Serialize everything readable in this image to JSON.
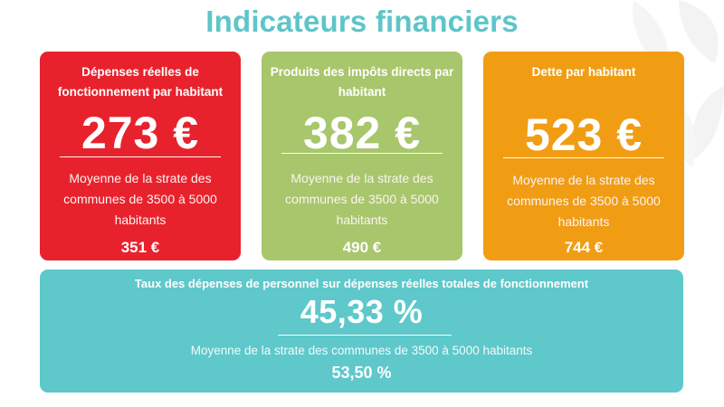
{
  "page": {
    "title": "Indicateurs financiers"
  },
  "colors": {
    "title": "#5ec5c9",
    "card_1": "#e8222d",
    "card_2": "#a8c66b",
    "card_3": "#f09d14",
    "wide_card": "#5ec8cb"
  },
  "cards": [
    {
      "heading": "Dépenses réelles de fonctionnement par habitant",
      "value": "273 €",
      "note": "Moyenne de la strate des communes de 3500 à 5000 habitants",
      "average": "351 €"
    },
    {
      "heading": "Produits des impôts directs par habitant",
      "value": "382 €",
      "note": "Moyenne de la strate des communes de 3500 à 5000 habitants",
      "average": "490 €"
    },
    {
      "heading": "Dette par habitant",
      "value": "523 €",
      "note": "Moyenne de la strate des communes de 3500 à 5000 habitants",
      "average": "744 €"
    }
  ],
  "wide_card": {
    "heading": "Taux des dépenses de personnel sur dépenses réelles totales de fonctionnement",
    "value": "45,33 %",
    "note": "Moyenne de la strate des communes de 3500 à 5000 habitants",
    "average": "53,50 %"
  }
}
